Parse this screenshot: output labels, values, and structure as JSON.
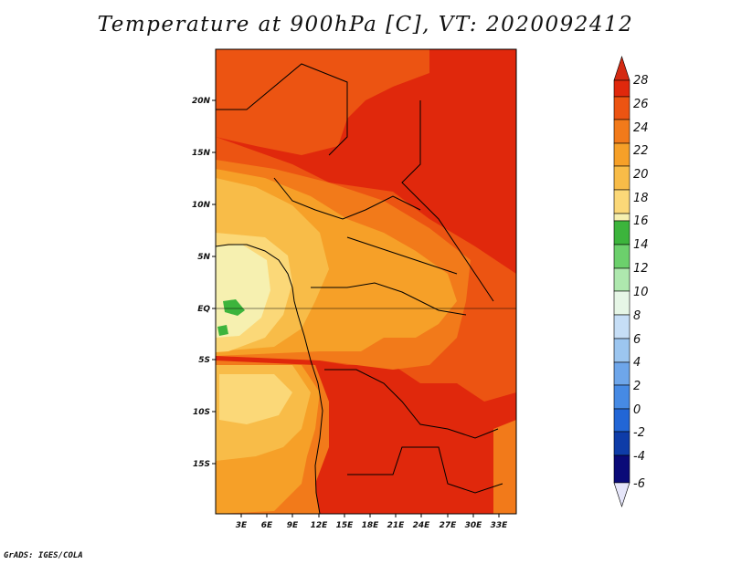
{
  "title": "Temperature at 900hPa [C], VT: 2020092412",
  "credit": "GrADS: IGES/COLA",
  "map": {
    "lon_labels": [
      "3E",
      "6E",
      "9E",
      "12E",
      "15E",
      "18E",
      "21E",
      "24E",
      "27E",
      "30E",
      "33E"
    ],
    "lat_labels": [
      "20N",
      "15N",
      "10N",
      "5N",
      "EQ",
      "5S",
      "10S",
      "15S"
    ]
  },
  "colorbar": {
    "levels": [
      "28",
      "26",
      "24",
      "22",
      "20",
      "18",
      "16",
      "14",
      "12",
      "10",
      "8",
      "6",
      "4",
      "2",
      "0",
      "-2",
      "-4",
      "-6"
    ],
    "colors": {
      "top_arrow": "#d42a12",
      "bottom_arrow": "#e6e6fa",
      "bins_top_to_bottom": [
        "#e0280c",
        "#ec5412",
        "#f27a1a",
        "#f6a028",
        "#f8bc48",
        "#fbd878",
        "#f6f0b0",
        "#3cb43c",
        "#6cd06c",
        "#aee8ae",
        "#e6f6e6",
        "#c6def6",
        "#9cc6f0",
        "#6ea6ea",
        "#468ae4",
        "#2266d6",
        "#0e3ca8",
        "#0a0a78"
      ]
    }
  },
  "field_colors": {
    "c28": "#e0280c",
    "c26": "#ec5412",
    "c24": "#f27a1a",
    "c22": "#f6a028",
    "c20": "#f8bc48",
    "c18": "#fbd878",
    "c16": "#f6f0b0",
    "c14": "#3cb43c"
  }
}
